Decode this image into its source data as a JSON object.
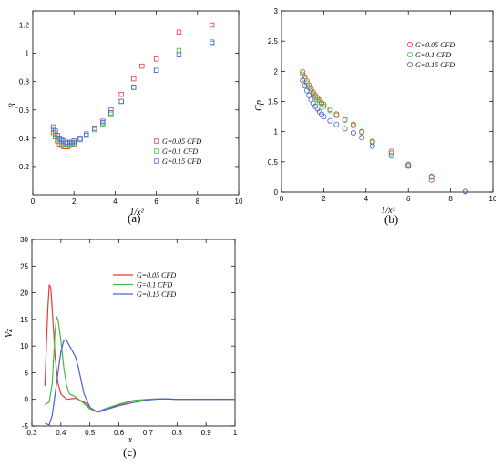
{
  "chart_data": [
    {
      "panel": "(a)",
      "type": "scatter",
      "xlabel": "1/x²",
      "ylabel": "β",
      "xlim": [
        0,
        10
      ],
      "ylim": [
        0,
        1.3
      ],
      "xticks": [
        0,
        2,
        4,
        6,
        8,
        10
      ],
      "yticks": [
        0.2,
        0.4,
        0.6,
        0.8,
        1.0,
        1.2
      ],
      "ytick_labels": [
        "0.2",
        "0.4",
        "0.6",
        "0.8",
        "1",
        "1.2"
      ],
      "grid": false,
      "legend_position": "lower-right",
      "series": [
        {
          "name": "G=0.05 CFD",
          "color": "#e23b3b",
          "marker": "square",
          "x": [
            1.0,
            1.1,
            1.2,
            1.3,
            1.4,
            1.5,
            1.6,
            1.7,
            1.8,
            1.9,
            2.0,
            2.3,
            2.6,
            3.0,
            3.4,
            3.8,
            4.3,
            4.9,
            5.3,
            6.0,
            7.1,
            8.7
          ],
          "y": [
            0.44,
            0.41,
            0.38,
            0.36,
            0.35,
            0.34,
            0.34,
            0.34,
            0.35,
            0.36,
            0.36,
            0.39,
            0.42,
            0.47,
            0.52,
            0.6,
            0.71,
            0.82,
            0.91,
            0.96,
            1.15,
            1.2
          ]
        },
        {
          "name": "G=0.1 CFD",
          "color": "#3fbf3f",
          "marker": "square",
          "x": [
            1.0,
            1.1,
            1.2,
            1.3,
            1.4,
            1.5,
            1.6,
            1.7,
            1.8,
            1.9,
            2.0,
            2.3,
            2.6,
            3.0,
            3.4,
            3.8,
            4.3,
            4.9,
            6.0,
            7.1,
            8.7
          ],
          "y": [
            0.46,
            0.43,
            0.4,
            0.38,
            0.37,
            0.36,
            0.36,
            0.36,
            0.36,
            0.36,
            0.37,
            0.39,
            0.42,
            0.46,
            0.5,
            0.57,
            0.66,
            0.76,
            0.88,
            1.02,
            1.07
          ]
        },
        {
          "name": "G=0.15 CFD",
          "color": "#4a5fd6",
          "marker": "square",
          "x": [
            1.0,
            1.1,
            1.2,
            1.3,
            1.4,
            1.5,
            1.6,
            1.7,
            1.8,
            1.9,
            2.0,
            2.3,
            2.6,
            3.0,
            3.4,
            3.8,
            4.3,
            4.9,
            6.0,
            7.1,
            8.7
          ],
          "y": [
            0.48,
            0.45,
            0.42,
            0.4,
            0.39,
            0.38,
            0.37,
            0.37,
            0.37,
            0.37,
            0.38,
            0.4,
            0.43,
            0.47,
            0.51,
            0.58,
            0.66,
            0.76,
            0.88,
            0.99,
            1.08
          ]
        }
      ]
    },
    {
      "panel": "(b)",
      "type": "scatter",
      "xlabel": "1/x²",
      "ylabel": "Cp",
      "xlim": [
        0,
        10
      ],
      "ylim": [
        0,
        3
      ],
      "xticks": [
        0,
        2,
        4,
        6,
        8,
        10
      ],
      "yticks": [
        0,
        0.5,
        1,
        1.5,
        2,
        2.5,
        3
      ],
      "ytick_labels": [
        "0",
        "0.5",
        "1",
        "1.5",
        "2",
        "2.5",
        "3"
      ],
      "grid": false,
      "legend_position": "top-right",
      "series": [
        {
          "name": "G=0.05 CFD",
          "color": "#e23b3b",
          "marker": "circle",
          "x": [
            1.0,
            1.1,
            1.2,
            1.3,
            1.4,
            1.5,
            1.6,
            1.7,
            1.8,
            1.9,
            2.0,
            2.3,
            2.6,
            3.0,
            3.4,
            3.8,
            4.3,
            5.2,
            6.0,
            7.1,
            8.7
          ],
          "y": [
            1.99,
            1.91,
            1.84,
            1.77,
            1.71,
            1.65,
            1.6,
            1.56,
            1.52,
            1.48,
            1.45,
            1.37,
            1.29,
            1.2,
            1.12,
            1.0,
            0.84,
            0.67,
            0.45,
            0.2,
            0.01
          ]
        },
        {
          "name": "G=0.1 CFD",
          "color": "#3fbf3f",
          "marker": "circle",
          "x": [
            1.0,
            1.1,
            1.2,
            1.3,
            1.4,
            1.5,
            1.6,
            1.7,
            1.8,
            1.9,
            2.0,
            2.3,
            2.6,
            3.0,
            3.4,
            3.8,
            4.3,
            5.2,
            6.0,
            7.1,
            8.7
          ],
          "y": [
            1.95,
            1.87,
            1.8,
            1.73,
            1.67,
            1.62,
            1.57,
            1.53,
            1.49,
            1.46,
            1.42,
            1.35,
            1.27,
            1.19,
            1.1,
            0.99,
            0.82,
            0.64,
            0.46,
            0.26,
            0.01
          ]
        },
        {
          "name": "G=0.15 CFD",
          "color": "#4a5fd6",
          "marker": "circle",
          "x": [
            1.0,
            1.1,
            1.2,
            1.3,
            1.4,
            1.5,
            1.6,
            1.7,
            1.8,
            1.9,
            2.0,
            2.3,
            2.6,
            3.0,
            3.4,
            3.8,
            4.3,
            5.2,
            6.0,
            7.1,
            8.7
          ],
          "y": [
            1.85,
            1.76,
            1.68,
            1.6,
            1.53,
            1.47,
            1.42,
            1.38,
            1.33,
            1.29,
            1.25,
            1.18,
            1.12,
            1.05,
            0.98,
            0.9,
            0.76,
            0.6,
            0.43,
            0.25,
            0.01
          ]
        }
      ]
    },
    {
      "panel": "(c)",
      "type": "line",
      "xlabel": "x",
      "ylabel": "Vz",
      "xlim": [
        0.3,
        1
      ],
      "ylim": [
        -5,
        30
      ],
      "xticks": [
        0.3,
        0.4,
        0.5,
        0.6,
        0.7,
        0.8,
        0.9,
        1
      ],
      "yticks": [
        -5,
        0,
        5,
        10,
        15,
        20,
        25,
        30
      ],
      "grid": false,
      "legend_position": "top-right",
      "series": [
        {
          "name": "G=0.05 CFD",
          "color": "#e23b3b",
          "x": [
            0.345,
            0.35,
            0.355,
            0.36,
            0.365,
            0.37,
            0.38,
            0.39,
            0.4,
            0.42,
            0.45,
            0.48,
            0.5,
            0.52,
            0.53,
            0.55,
            0.6,
            0.65,
            0.7,
            0.75,
            0.8,
            0.9,
            1.0
          ],
          "y": [
            2.5,
            10,
            17,
            21.5,
            21,
            17,
            8,
            3,
            1,
            0,
            0.2,
            -0.5,
            -1.5,
            -2.2,
            -2.4,
            -2.0,
            -1.0,
            -0.3,
            0,
            0.1,
            0,
            0,
            0
          ]
        },
        {
          "name": "G=0.1 CFD",
          "color": "#3fbf3f",
          "x": [
            0.345,
            0.36,
            0.37,
            0.375,
            0.38,
            0.385,
            0.39,
            0.4,
            0.41,
            0.42,
            0.43,
            0.45,
            0.48,
            0.5,
            0.52,
            0.53,
            0.55,
            0.6,
            0.65,
            0.7,
            0.75,
            0.8,
            0.9,
            1.0
          ],
          "y": [
            -1,
            -0.5,
            3,
            8,
            13,
            15.5,
            15,
            11,
            6,
            2.5,
            1,
            0.5,
            -0.8,
            -1.8,
            -2.2,
            -2.3,
            -1.8,
            -0.9,
            -0.2,
            0,
            0.1,
            0,
            0,
            0
          ]
        },
        {
          "name": "G=0.15 CFD",
          "color": "#4a5fd6",
          "x": [
            0.345,
            0.36,
            0.37,
            0.38,
            0.39,
            0.4,
            0.41,
            0.415,
            0.42,
            0.43,
            0.45,
            0.46,
            0.48,
            0.5,
            0.52,
            0.55,
            0.6,
            0.65,
            0.7,
            0.75,
            0.8,
            0.9,
            1.0
          ],
          "y": [
            -4.5,
            -4.8,
            -3,
            1,
            5,
            9,
            11,
            11.2,
            11,
            10,
            8,
            6,
            1,
            -1.5,
            -2.3,
            -2.0,
            -1.2,
            -0.6,
            -0.1,
            0.1,
            0,
            0,
            0
          ]
        }
      ]
    }
  ]
}
